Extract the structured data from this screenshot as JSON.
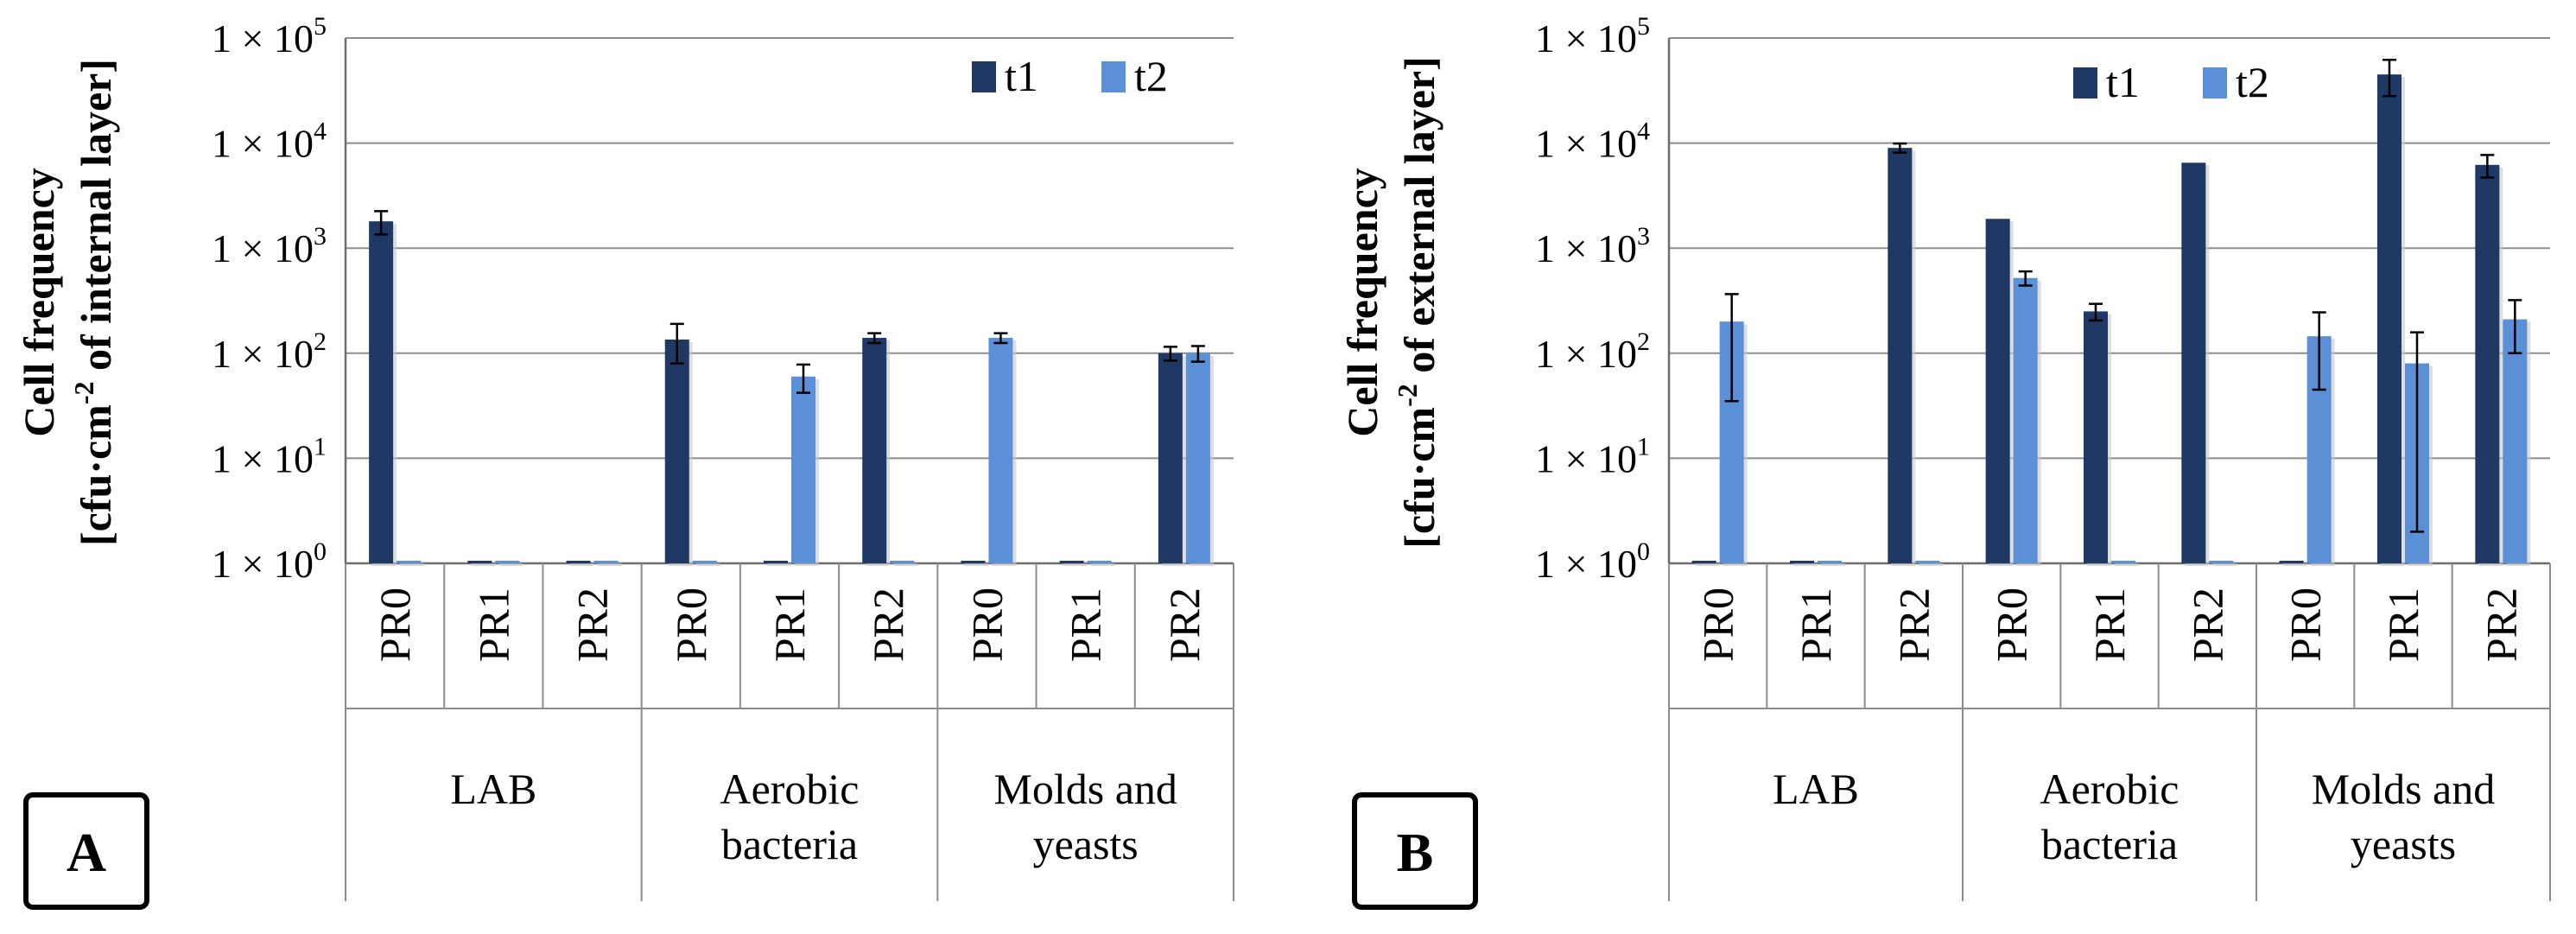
{
  "figure": {
    "colors": {
      "t1": "#1f3864",
      "t2": "#5b8fd6",
      "grid": "#8c8c8c",
      "text": "#000000"
    }
  },
  "chart_data": [
    {
      "type": "bar",
      "panel": "A",
      "y_scale": "log10",
      "ylim": [
        1,
        100000
      ],
      "ylabel_line1": "Cell frequency",
      "ylabel_line2_pre": "[cfu·cm",
      "ylabel_line2_sup": "-2",
      "ylabel_line2_post": " of internal layer]",
      "y_ticks": [
        {
          "exp": "0",
          "mantissa": "1 × 10"
        },
        {
          "exp": "1",
          "mantissa": "1 × 10"
        },
        {
          "exp": "2",
          "mantissa": "1 × 10"
        },
        {
          "exp": "3",
          "mantissa": "1 × 10"
        },
        {
          "exp": "4",
          "mantissa": "1 × 10"
        },
        {
          "exp": "5",
          "mantissa": "1 × 10"
        }
      ],
      "groups": [
        "LAB",
        "Aerobic bacteria",
        "Molds and yeasts"
      ],
      "groups_lines": [
        [
          "LAB"
        ],
        [
          "Aerobic",
          "bacteria"
        ],
        [
          "Molds and",
          "yeasts"
        ]
      ],
      "categories": [
        "PR0",
        "PR1",
        "PR2",
        "PR0",
        "PR1",
        "PR2",
        "PR0",
        "PR1",
        "PR2"
      ],
      "legend_position": "top-right",
      "series": [
        {
          "name": "t1",
          "values": [
            1800,
            1,
            1,
            135,
            1,
            140,
            1,
            1,
            100
          ],
          "errors": [
            450,
            0,
            0,
            55,
            0,
            15,
            0,
            0,
            15
          ]
        },
        {
          "name": "t2",
          "values": [
            1,
            1,
            1,
            1,
            60,
            1,
            140,
            1,
            100
          ],
          "errors": [
            0,
            0,
            0,
            0,
            18,
            0,
            15,
            0,
            17
          ]
        }
      ]
    },
    {
      "type": "bar",
      "panel": "B",
      "y_scale": "log10",
      "ylim": [
        1,
        100000
      ],
      "ylabel_line1": "Cell frequency",
      "ylabel_line2_pre": "[cfu·cm",
      "ylabel_line2_sup": "-2",
      "ylabel_line2_post": " of external layer]",
      "y_ticks": [
        {
          "exp": "0",
          "mantissa": "1 × 10"
        },
        {
          "exp": "1",
          "mantissa": "1 × 10"
        },
        {
          "exp": "2",
          "mantissa": "1 × 10"
        },
        {
          "exp": "3",
          "mantissa": "1 × 10"
        },
        {
          "exp": "4",
          "mantissa": "1 × 10"
        },
        {
          "exp": "5",
          "mantissa": "1 × 10"
        }
      ],
      "groups": [
        "LAB",
        "Aerobic bacteria",
        "Molds and yeasts"
      ],
      "groups_lines": [
        [
          "LAB"
        ],
        [
          "Aerobic",
          "bacteria"
        ],
        [
          "Molds and",
          "yeasts"
        ]
      ],
      "categories": [
        "PR0",
        "PR1",
        "PR2",
        "PR0",
        "PR1",
        "PR2",
        "PR0",
        "PR1",
        "PR2"
      ],
      "legend_position": "top-right",
      "series": [
        {
          "name": "t1",
          "values": [
            1,
            1,
            9000,
            1900,
            250,
            6500,
            1,
            45000,
            6200
          ],
          "errors": [
            0,
            0,
            900,
            0,
            45,
            0,
            0,
            17000,
            1500
          ]
        },
        {
          "name": "t2",
          "values": [
            200,
            1,
            1,
            520,
            1,
            1,
            145,
            80,
            210
          ],
          "errors": [
            165,
            0,
            0,
            80,
            0,
            0,
            100,
            78,
            110
          ]
        }
      ]
    }
  ]
}
